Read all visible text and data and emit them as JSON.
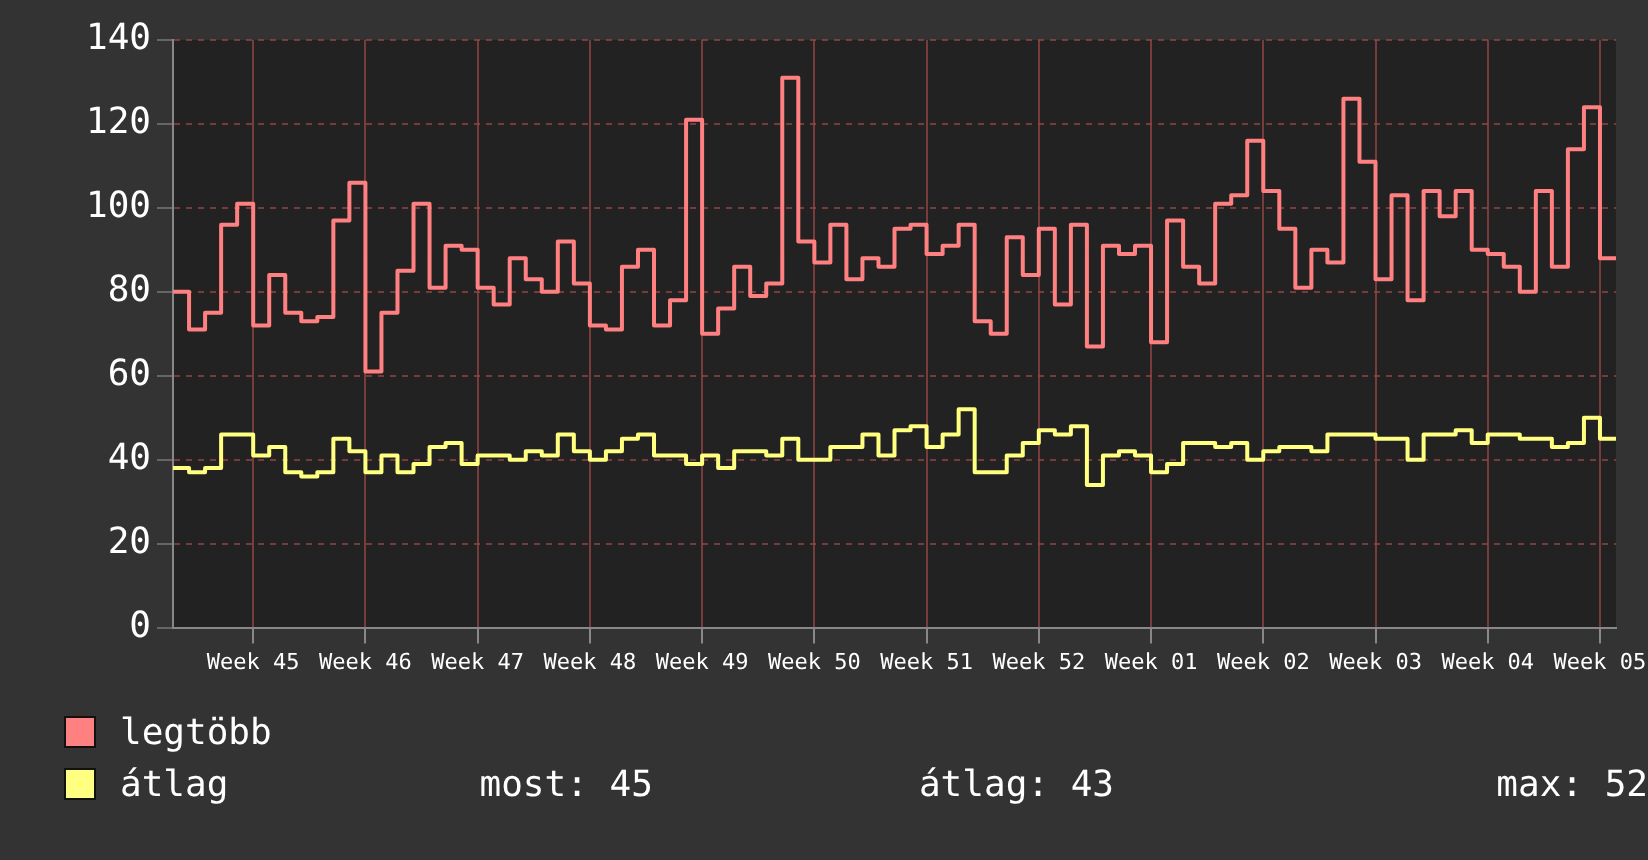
{
  "chart_data": {
    "type": "step",
    "categories": [
      null,
      null,
      null,
      null,
      null,
      "Week 45",
      null,
      null,
      null,
      null,
      null,
      null,
      "Week 46",
      null,
      null,
      null,
      null,
      null,
      null,
      "Week 47",
      null,
      null,
      null,
      null,
      null,
      null,
      "Week 48",
      null,
      null,
      null,
      null,
      null,
      null,
      "Week 49",
      null,
      null,
      null,
      null,
      null,
      null,
      "Week 50",
      null,
      null,
      null,
      null,
      null,
      null,
      "Week 51",
      null,
      null,
      null,
      null,
      null,
      null,
      "Week 52",
      null,
      null,
      null,
      null,
      null,
      null,
      "Week 01",
      null,
      null,
      null,
      null,
      null,
      null,
      "Week 02",
      null,
      null,
      null,
      null,
      null,
      null,
      "Week 03",
      null,
      null,
      null,
      null,
      null,
      null,
      "Week 04",
      null,
      null,
      null,
      null,
      null,
      null,
      "Week 05",
      null
    ],
    "series": [
      {
        "name": "legtöbb",
        "color": "#ff8080",
        "values": [
          80,
          71,
          75,
          96,
          101,
          72,
          84,
          75,
          73,
          74,
          97,
          106,
          61,
          75,
          85,
          101,
          81,
          91,
          90,
          81,
          77,
          88,
          83,
          80,
          92,
          82,
          72,
          71,
          86,
          90,
          72,
          78,
          121,
          70,
          76,
          86,
          79,
          82,
          131,
          92,
          87,
          96,
          83,
          88,
          86,
          95,
          96,
          89,
          91,
          96,
          73,
          70,
          93,
          84,
          95,
          77,
          96,
          67,
          91,
          89,
          91,
          68,
          97,
          86,
          82,
          101,
          103,
          116,
          104,
          95,
          81,
          90,
          87,
          126,
          111,
          83,
          103,
          78,
          104,
          98,
          104,
          90,
          89,
          86,
          80,
          104,
          86,
          114,
          124,
          88,
          88
        ]
      },
      {
        "name": "átlag",
        "color": "#ffff80",
        "values": [
          38,
          37,
          38,
          46,
          46,
          41,
          43,
          37,
          36,
          37,
          45,
          42,
          37,
          41,
          37,
          39,
          43,
          44,
          39,
          41,
          41,
          40,
          42,
          41,
          46,
          42,
          40,
          42,
          45,
          46,
          41,
          41,
          39,
          41,
          38,
          42,
          42,
          41,
          45,
          40,
          40,
          43,
          43,
          46,
          41,
          47,
          48,
          43,
          46,
          52,
          37,
          37,
          41,
          44,
          47,
          46,
          48,
          34,
          41,
          42,
          41,
          37,
          39,
          44,
          44,
          43,
          44,
          40,
          42,
          43,
          43,
          42,
          46,
          46,
          46,
          45,
          45,
          40,
          46,
          46,
          47,
          44,
          46,
          46,
          45,
          45,
          43,
          44,
          50,
          45,
          45
        ]
      }
    ],
    "ylim": [
      0,
      140
    ],
    "yticks": [
      0,
      20,
      40,
      60,
      80,
      100,
      120,
      140
    ],
    "grid": true,
    "legend": "bottom",
    "annotations": [
      "most: 45",
      "átlag: 43",
      "max: 52"
    ]
  }
}
